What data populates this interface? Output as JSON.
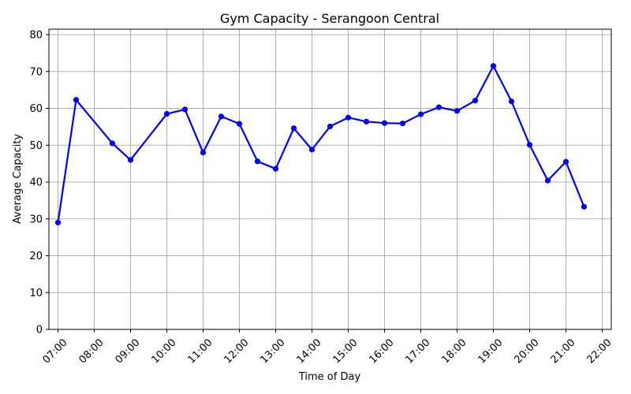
{
  "chart_data": {
    "type": "line",
    "title": "Gym Capacity - Serangoon Central",
    "xlabel": "Time of Day",
    "ylabel": "Average Capacity",
    "x_ticks": [
      "07:00",
      "08:00",
      "09:00",
      "10:00",
      "11:00",
      "12:00",
      "13:00",
      "14:00",
      "15:00",
      "16:00",
      "17:00",
      "18:00",
      "19:00",
      "20:00",
      "21:00",
      "22:00"
    ],
    "y_ticks": [
      0,
      10,
      20,
      30,
      40,
      50,
      60,
      70,
      80
    ],
    "ylim": [
      0,
      81.5
    ],
    "xlim": [
      "06:45",
      "22:15"
    ],
    "grid": true,
    "series": [
      {
        "color": "#0000ff",
        "marker": "circle",
        "points": [
          {
            "time": "07:00",
            "value": 29.0
          },
          {
            "time": "07:30",
            "value": 62.3
          },
          {
            "time": "08:30",
            "value": 50.5
          },
          {
            "time": "09:00",
            "value": 46.0
          },
          {
            "time": "10:00",
            "value": 58.5
          },
          {
            "time": "10:30",
            "value": 59.7
          },
          {
            "time": "11:00",
            "value": 48.0
          },
          {
            "time": "11:30",
            "value": 57.8
          },
          {
            "time": "12:00",
            "value": 55.8
          },
          {
            "time": "12:30",
            "value": 45.6
          },
          {
            "time": "13:00",
            "value": 43.6
          },
          {
            "time": "13:30",
            "value": 54.6
          },
          {
            "time": "14:00",
            "value": 48.8
          },
          {
            "time": "14:30",
            "value": 55.1
          },
          {
            "time": "15:00",
            "value": 57.5
          },
          {
            "time": "15:30",
            "value": 56.4
          },
          {
            "time": "16:00",
            "value": 56.0
          },
          {
            "time": "16:30",
            "value": 55.9
          },
          {
            "time": "17:00",
            "value": 58.4
          },
          {
            "time": "17:30",
            "value": 60.3
          },
          {
            "time": "18:00",
            "value": 59.3
          },
          {
            "time": "18:30",
            "value": 62.1
          },
          {
            "time": "19:00",
            "value": 71.5
          },
          {
            "time": "19:30",
            "value": 61.9
          },
          {
            "time": "20:00",
            "value": 50.1
          },
          {
            "time": "20:30",
            "value": 40.4
          },
          {
            "time": "21:00",
            "value": 45.5
          },
          {
            "time": "21:30",
            "value": 33.3
          }
        ]
      }
    ]
  }
}
